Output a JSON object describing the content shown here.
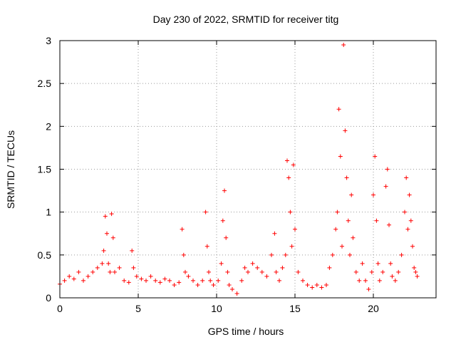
{
  "chart_data": {
    "type": "scatter",
    "title": "Day 230 of 2022, SRMTID for receiver titg",
    "xlabel": "GPS time / hours",
    "ylabel": "SRMTID / TECUs",
    "xlim": [
      0,
      24
    ],
    "ylim": [
      0,
      3
    ],
    "xticks": [
      0,
      5,
      10,
      15,
      20
    ],
    "yticks": [
      0,
      0.5,
      1,
      1.5,
      2,
      2.5,
      3
    ],
    "ytick_labels": [
      "0",
      "0.5",
      "1",
      "1.5",
      "2",
      "2.5",
      "3"
    ],
    "grid": true,
    "marker": "+",
    "marker_color": "#ff0000",
    "series": [
      {
        "name": "titg",
        "x": [
          0.0,
          0.3,
          0.6,
          0.9,
          1.2,
          1.5,
          1.8,
          2.1,
          2.4,
          2.7,
          2.8,
          2.9,
          3.0,
          3.1,
          3.2,
          3.3,
          3.4,
          3.5,
          3.8,
          4.1,
          4.4,
          4.6,
          4.7,
          4.9,
          5.2,
          5.5,
          5.8,
          6.1,
          6.4,
          6.7,
          7.0,
          7.3,
          7.6,
          7.8,
          7.9,
          8.0,
          8.2,
          8.5,
          8.8,
          9.1,
          9.3,
          9.4,
          9.5,
          9.6,
          9.8,
          10.1,
          10.3,
          10.4,
          10.5,
          10.6,
          10.7,
          10.8,
          11.0,
          11.3,
          11.6,
          11.8,
          12.0,
          12.3,
          12.6,
          12.9,
          13.2,
          13.5,
          13.7,
          13.8,
          14.0,
          14.2,
          14.4,
          14.5,
          14.6,
          14.7,
          14.8,
          14.9,
          15.0,
          15.2,
          15.5,
          15.8,
          16.1,
          16.4,
          16.7,
          17.0,
          17.2,
          17.4,
          17.6,
          17.7,
          17.8,
          17.9,
          18.0,
          18.1,
          18.2,
          18.3,
          18.4,
          18.5,
          18.6,
          18.7,
          18.9,
          19.1,
          19.3,
          19.5,
          19.7,
          19.9,
          20.0,
          20.1,
          20.2,
          20.3,
          20.4,
          20.6,
          20.8,
          20.9,
          21.0,
          21.1,
          21.2,
          21.4,
          21.6,
          21.8,
          22.0,
          22.1,
          22.2,
          22.3,
          22.4,
          22.5,
          22.6,
          22.7,
          22.8
        ],
        "y": [
          0.16,
          0.2,
          0.25,
          0.22,
          0.3,
          0.2,
          0.25,
          0.3,
          0.35,
          0.4,
          0.55,
          0.95,
          0.75,
          0.4,
          0.3,
          0.98,
          0.7,
          0.3,
          0.35,
          0.2,
          0.18,
          0.55,
          0.35,
          0.25,
          0.22,
          0.2,
          0.25,
          0.2,
          0.18,
          0.22,
          0.2,
          0.15,
          0.18,
          0.8,
          0.5,
          0.3,
          0.25,
          0.2,
          0.15,
          0.2,
          1.0,
          0.6,
          0.3,
          0.2,
          0.15,
          0.2,
          0.4,
          0.9,
          1.25,
          0.7,
          0.3,
          0.15,
          0.1,
          0.05,
          0.2,
          0.35,
          0.3,
          0.4,
          0.35,
          0.3,
          0.25,
          0.5,
          0.75,
          0.3,
          0.2,
          0.35,
          0.5,
          1.6,
          1.4,
          1.0,
          0.6,
          1.55,
          0.8,
          0.3,
          0.2,
          0.15,
          0.12,
          0.15,
          0.12,
          0.15,
          0.35,
          0.5,
          0.8,
          1.0,
          2.2,
          1.65,
          0.6,
          2.95,
          1.95,
          1.4,
          0.9,
          0.5,
          1.2,
          0.7,
          0.3,
          0.2,
          0.4,
          0.2,
          0.1,
          0.3,
          1.2,
          1.65,
          0.9,
          0.4,
          0.2,
          0.3,
          1.3,
          1.5,
          0.85,
          0.4,
          0.25,
          0.2,
          0.3,
          0.5,
          1.0,
          1.4,
          0.8,
          1.2,
          0.9,
          0.6,
          0.35,
          0.3,
          0.25
        ]
      }
    ]
  }
}
